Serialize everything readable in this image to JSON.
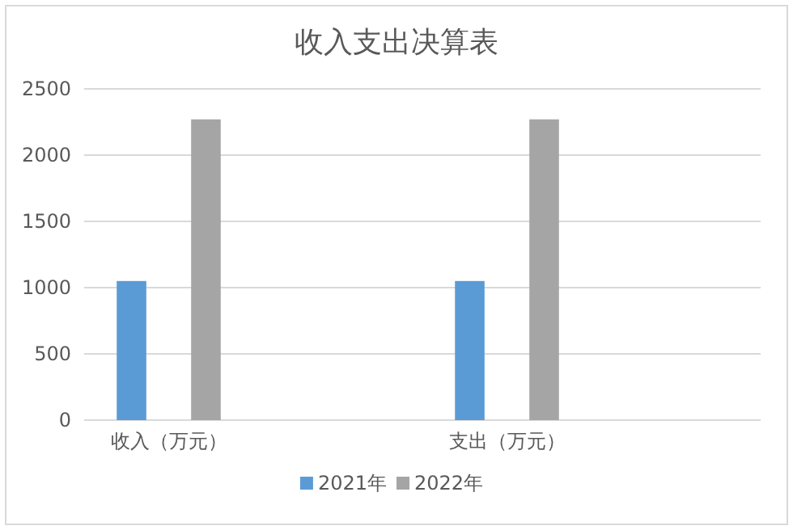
{
  "chart_data": {
    "type": "bar",
    "title": "收入支出决算表",
    "categories": [
      "收入（万元）",
      null,
      "支出（万元）",
      null
    ],
    "series": [
      {
        "name": "2021年",
        "color": "#5b9bd5",
        "values": [
          1050,
          null,
          1050,
          null
        ]
      },
      {
        "name": "2022年",
        "color": "#a5a5a5",
        "values": [
          2270,
          null,
          2270,
          null
        ]
      }
    ],
    "ylim": [
      0,
      2500
    ],
    "yticks": [
      0,
      500,
      1000,
      1500,
      2000,
      2500
    ],
    "grid": "y",
    "legend": "bottom"
  }
}
